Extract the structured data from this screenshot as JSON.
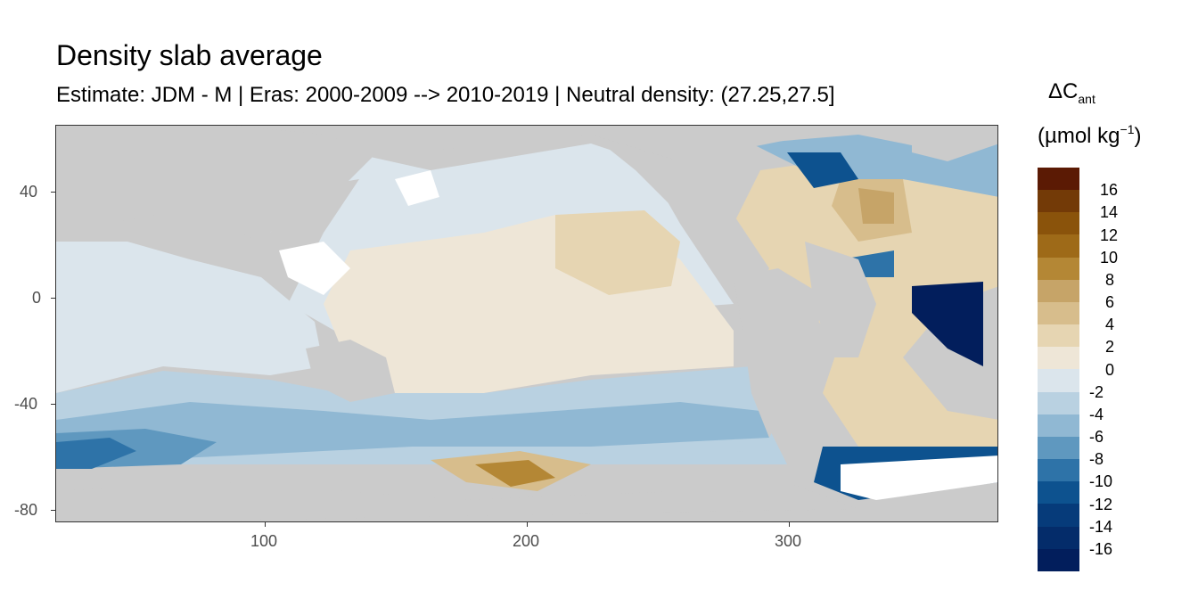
{
  "map": {
    "title": "Density slab average",
    "subtitle": "Estimate: JDM - M | Eras: 2000-2009 --> 2010-2019 | Neutral density: (27.25,27.5]",
    "x_axis": {
      "range": [
        20,
        380
      ],
      "ticks": [
        100,
        200,
        300
      ],
      "tick_labels": [
        "100",
        "200",
        "300"
      ]
    },
    "y_axis": {
      "range": [
        -85,
        65
      ],
      "ticks": [
        40,
        0,
        -40,
        -80
      ],
      "tick_labels": [
        "40",
        "0",
        "-40",
        "-80"
      ]
    },
    "colors": {
      "land": "#cbcbcb",
      "no_data": "#ffffff"
    }
  },
  "legend": {
    "title_symbol": "ΔC",
    "title_subscript": "ant",
    "unit_prefix": "(µmol kg",
    "unit_superscript": "−1",
    "unit_suffix": ")",
    "labels": [
      "16",
      "14",
      "12",
      "10",
      "8",
      "6",
      "4",
      "2",
      "0",
      "-2",
      "-4",
      "-6",
      "-8",
      "-10",
      "-12",
      "-14",
      "-16"
    ],
    "colors": [
      "#5b1a04",
      "#733a07",
      "#8a530b",
      "#9e6a18",
      "#b48735",
      "#c6a468",
      "#d7bd8c",
      "#e6d5b2",
      "#eee6d7",
      "#dbe5ec",
      "#b9d1e1",
      "#90b8d3",
      "#5f98bf",
      "#2e73a8",
      "#0d528f",
      "#063b7a",
      "#042c6a",
      "#021e5c"
    ]
  }
}
